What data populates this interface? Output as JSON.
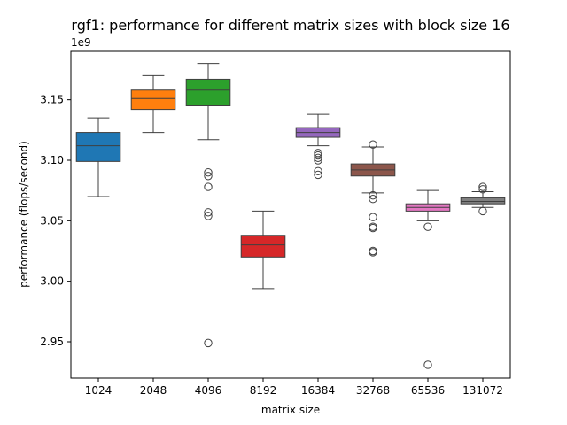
{
  "chart_data": {
    "type": "box",
    "title": "rgf1: performance for different matrix sizes with block size 16",
    "xlabel": "matrix size",
    "ylabel": "performance (flops/second)",
    "y_offset_label": "1e9",
    "ylim": [
      2.92,
      3.19
    ],
    "yticks": [
      "2.95",
      "3.00",
      "3.05",
      "3.10",
      "3.15"
    ],
    "ytick_values": [
      2.95,
      3.0,
      3.05,
      3.1,
      3.15
    ],
    "grid": false,
    "categories": [
      "1024",
      "2048",
      "4096",
      "8192",
      "16384",
      "32768",
      "65536",
      "131072"
    ],
    "colors": [
      "#1f77b4",
      "#ff7f0e",
      "#2ca02c",
      "#d62728",
      "#9467bd",
      "#8c564b",
      "#e377c2",
      "#7f7f7f"
    ],
    "series": [
      {
        "whisker_low": 3.07,
        "q1": 3.099,
        "median": 3.112,
        "q3": 3.123,
        "whisker_high": 3.135,
        "outliers": []
      },
      {
        "whisker_low": 3.123,
        "q1": 3.142,
        "median": 3.151,
        "q3": 3.158,
        "whisker_high": 3.17,
        "outliers": []
      },
      {
        "whisker_low": 3.117,
        "q1": 3.145,
        "median": 3.158,
        "q3": 3.167,
        "whisker_high": 3.18,
        "outliers": [
          3.09,
          3.087,
          3.078,
          3.057,
          3.054,
          2.949
        ]
      },
      {
        "whisker_low": 2.994,
        "q1": 3.02,
        "median": 3.03,
        "q3": 3.038,
        "whisker_high": 3.058,
        "outliers": []
      },
      {
        "whisker_low": 3.112,
        "q1": 3.119,
        "median": 3.123,
        "q3": 3.127,
        "whisker_high": 3.138,
        "outliers": [
          3.106,
          3.104,
          3.102,
          3.1,
          3.091,
          3.088
        ]
      },
      {
        "whisker_low": 3.073,
        "q1": 3.087,
        "median": 3.092,
        "q3": 3.097,
        "whisker_high": 3.111,
        "outliers": [
          3.113,
          3.071,
          3.068,
          3.053,
          3.045,
          3.044,
          3.025,
          3.024
        ]
      },
      {
        "whisker_low": 3.05,
        "q1": 3.058,
        "median": 3.061,
        "q3": 3.064,
        "whisker_high": 3.075,
        "outliers": [
          3.045,
          2.931
        ]
      },
      {
        "whisker_low": 3.061,
        "q1": 3.064,
        "median": 3.066,
        "q3": 3.069,
        "whisker_high": 3.074,
        "outliers": [
          3.078,
          3.076,
          3.058
        ]
      }
    ]
  }
}
